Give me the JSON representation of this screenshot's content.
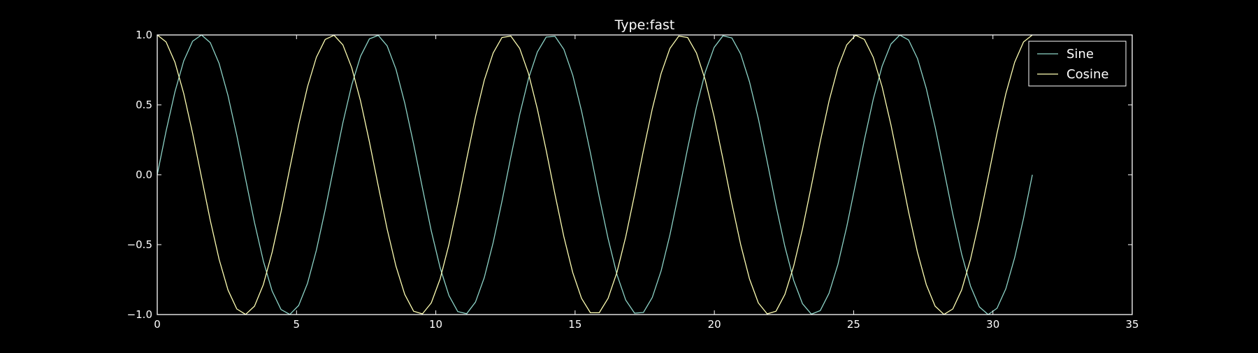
{
  "colors": {
    "background": "#000000",
    "axes": "#ffffff",
    "text": "#ffffff",
    "sine": "#8dd3c7",
    "cosine": "#ffffb3"
  },
  "chart_data": {
    "type": "line",
    "title": "Type:fast",
    "xlabel": "",
    "ylabel": "",
    "xlim": [
      0,
      35
    ],
    "ylim": [
      -1.0,
      1.0
    ],
    "xticks": [
      0,
      5,
      10,
      15,
      20,
      25,
      30,
      35
    ],
    "xtick_labels": [
      "0",
      "5",
      "10",
      "15",
      "20",
      "25",
      "30",
      "35"
    ],
    "yticks": [
      1.0,
      0.5,
      0.0,
      -0.5,
      -1.0
    ],
    "ytick_labels": [
      "1.0",
      "0.5",
      "0.0",
      "−0.5",
      "−1.0"
    ],
    "grid": false,
    "legend_position": "top-right",
    "x": [
      0.0,
      0.317,
      0.635,
      0.952,
      1.269,
      1.587,
      1.904,
      2.221,
      2.539,
      2.856,
      3.173,
      3.491,
      3.808,
      4.125,
      4.443,
      4.76,
      5.077,
      5.395,
      5.712,
      6.029,
      6.347,
      6.664,
      6.981,
      7.299,
      7.616,
      7.933,
      8.251,
      8.568,
      8.885,
      9.203,
      9.52,
      9.837,
      10.155,
      10.472,
      10.789,
      11.107,
      11.424,
      11.741,
      12.059,
      12.376,
      12.693,
      13.011,
      13.328,
      13.645,
      13.963,
      14.28,
      14.597,
      14.915,
      15.232,
      15.549,
      15.867,
      16.184,
      16.501,
      16.819,
      17.136,
      17.453,
      17.771,
      18.088,
      18.405,
      18.723,
      19.04,
      19.357,
      19.675,
      19.992,
      20.309,
      20.627,
      20.944,
      21.261,
      21.579,
      21.896,
      22.213,
      22.531,
      22.848,
      23.165,
      23.483,
      23.8,
      24.117,
      24.435,
      24.752,
      25.069,
      25.387,
      25.704,
      26.021,
      26.339,
      26.656,
      26.973,
      27.291,
      27.608,
      27.925,
      28.243,
      28.56,
      28.877,
      29.195,
      29.512,
      29.829,
      30.147,
      30.464,
      30.781,
      31.099,
      31.416
    ],
    "series": [
      {
        "name": "Sine",
        "values": [
          0.0,
          0.312,
          0.593,
          0.815,
          0.955,
          1.0,
          0.945,
          0.796,
          0.567,
          0.282,
          -0.032,
          -0.342,
          -0.617,
          -0.832,
          -0.964,
          -0.999,
          -0.935,
          -0.776,
          -0.54,
          -0.251,
          0.064,
          0.372,
          0.642,
          0.848,
          0.972,
          0.997,
          0.923,
          0.756,
          0.513,
          0.22,
          -0.095,
          -0.401,
          -0.665,
          -0.864,
          -0.979,
          -0.994,
          -0.911,
          -0.735,
          -0.485,
          -0.189,
          0.127,
          0.43,
          0.688,
          0.878,
          0.985,
          0.99,
          0.897,
          0.713,
          0.456,
          0.158,
          -0.158,
          -0.456,
          -0.713,
          -0.897,
          -0.99,
          -0.985,
          -0.878,
          -0.688,
          -0.43,
          -0.127,
          0.189,
          0.485,
          0.735,
          0.911,
          0.994,
          0.979,
          0.864,
          0.665,
          0.401,
          0.095,
          -0.22,
          -0.513,
          -0.756,
          -0.923,
          -0.997,
          -0.972,
          -0.848,
          -0.642,
          -0.372,
          -0.064,
          0.251,
          0.54,
          0.776,
          0.935,
          0.999,
          0.964,
          0.832,
          0.617,
          0.342,
          0.032,
          -0.282,
          -0.567,
          -0.796,
          -0.945,
          -1.0,
          -0.955,
          -0.815,
          -0.593,
          -0.312,
          0.0
        ]
      },
      {
        "name": "Cosine",
        "values": [
          1.0,
          0.95,
          0.805,
          0.58,
          0.297,
          -0.016,
          -0.327,
          -0.605,
          -0.824,
          -0.96,
          -0.999,
          -0.94,
          -0.786,
          -0.554,
          -0.266,
          0.048,
          0.357,
          0.63,
          0.84,
          0.968,
          0.998,
          0.929,
          0.766,
          0.527,
          0.236,
          -0.079,
          -0.387,
          -0.653,
          -0.856,
          -0.976,
          -0.995,
          -0.917,
          -0.745,
          -0.499,
          -0.205,
          0.111,
          0.415,
          0.677,
          0.871,
          0.982,
          0.992,
          0.904,
          0.724,
          0.471,
          0.174,
          -0.142,
          -0.443,
          -0.699,
          -0.884,
          -0.987,
          -0.987,
          -0.884,
          -0.699,
          -0.443,
          -0.142,
          0.174,
          0.471,
          0.724,
          0.904,
          0.992,
          0.982,
          0.871,
          0.677,
          0.415,
          0.111,
          -0.205,
          -0.499,
          -0.745,
          -0.917,
          -0.995,
          -0.976,
          -0.856,
          -0.653,
          -0.387,
          -0.079,
          0.236,
          0.527,
          0.766,
          0.929,
          0.998,
          0.968,
          0.84,
          0.63,
          0.357,
          0.048,
          -0.266,
          -0.554,
          -0.786,
          -0.94,
          -0.999,
          -0.96,
          -0.824,
          -0.605,
          -0.327,
          -0.016,
          0.297,
          0.58,
          0.805,
          0.95,
          1.0
        ]
      }
    ]
  }
}
